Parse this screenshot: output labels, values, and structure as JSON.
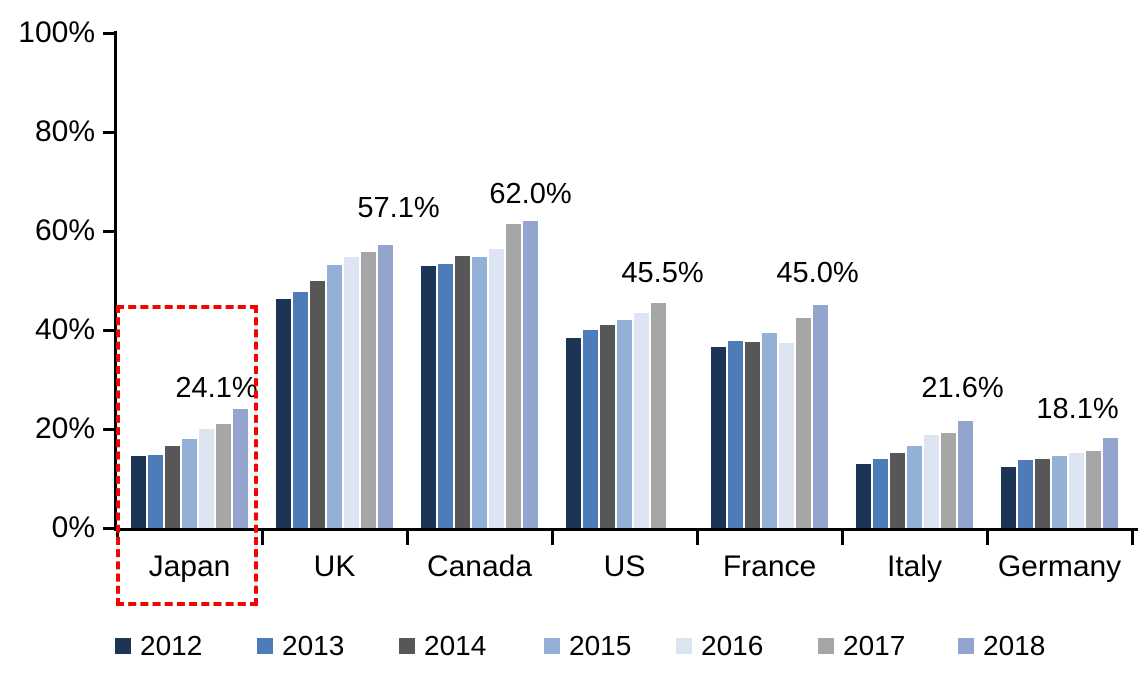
{
  "chart_data": {
    "type": "bar",
    "title": "",
    "xlabel": "",
    "ylabel": "",
    "categories": [
      "Japan",
      "UK",
      "Canada",
      "US",
      "France",
      "Italy",
      "Germany"
    ],
    "series": [
      {
        "name": "2012",
        "color": "#1C3557",
        "values": [
          14.5,
          46.3,
          52.9,
          38.3,
          36.6,
          13.0,
          12.3
        ]
      },
      {
        "name": "2013",
        "color": "#4E7CB8",
        "values": [
          14.8,
          47.7,
          53.4,
          40.1,
          37.8,
          13.9,
          13.7
        ]
      },
      {
        "name": "2014",
        "color": "#575757",
        "values": [
          16.5,
          49.9,
          55.0,
          41.0,
          37.6,
          15.1,
          14.0
        ]
      },
      {
        "name": "2015",
        "color": "#93B1D7",
        "values": [
          18.0,
          53.1,
          54.8,
          42.1,
          39.3,
          16.5,
          14.6
        ]
      },
      {
        "name": "2016",
        "color": "#DCE5F1",
        "values": [
          20.0,
          54.8,
          56.3,
          43.5,
          37.3,
          18.8,
          15.1
        ]
      },
      {
        "name": "2017",
        "color": "#A6A6A6",
        "values": [
          21.0,
          55.7,
          61.5,
          45.5,
          42.4,
          19.1,
          15.6
        ]
      },
      {
        "name": "2018",
        "color": "#93A5CE",
        "values": [
          24.1,
          57.1,
          62.0,
          null,
          45.0,
          21.6,
          18.1
        ]
      }
    ],
    "data_labels": [
      "24.1%",
      "57.1%",
      "62.0%",
      "45.5%",
      "45.0%",
      "21.6%",
      "18.1%"
    ],
    "y_ticks": [
      {
        "value": 100,
        "label": "100%"
      },
      {
        "value": 80,
        "label": "80%"
      },
      {
        "value": 60,
        "label": "60%"
      },
      {
        "value": 40,
        "label": "40%"
      },
      {
        "value": 20,
        "label": "20%"
      },
      {
        "value": 0,
        "label": "0%"
      }
    ],
    "ylim": [
      0,
      100
    ],
    "grid": false,
    "legend_position": "bottom",
    "legend_entries": [
      "2012",
      "2013",
      "2014",
      "2015",
      "2016",
      "2017",
      "2018"
    ],
    "annotations": [
      {
        "type": "highlight-box",
        "target_category": "Japan",
        "style": "dashed",
        "color": "#FF0000"
      }
    ],
    "colors": {
      "axis": "#000000",
      "background": "#FFFFFF",
      "highlight_box": "#FF0000"
    }
  }
}
